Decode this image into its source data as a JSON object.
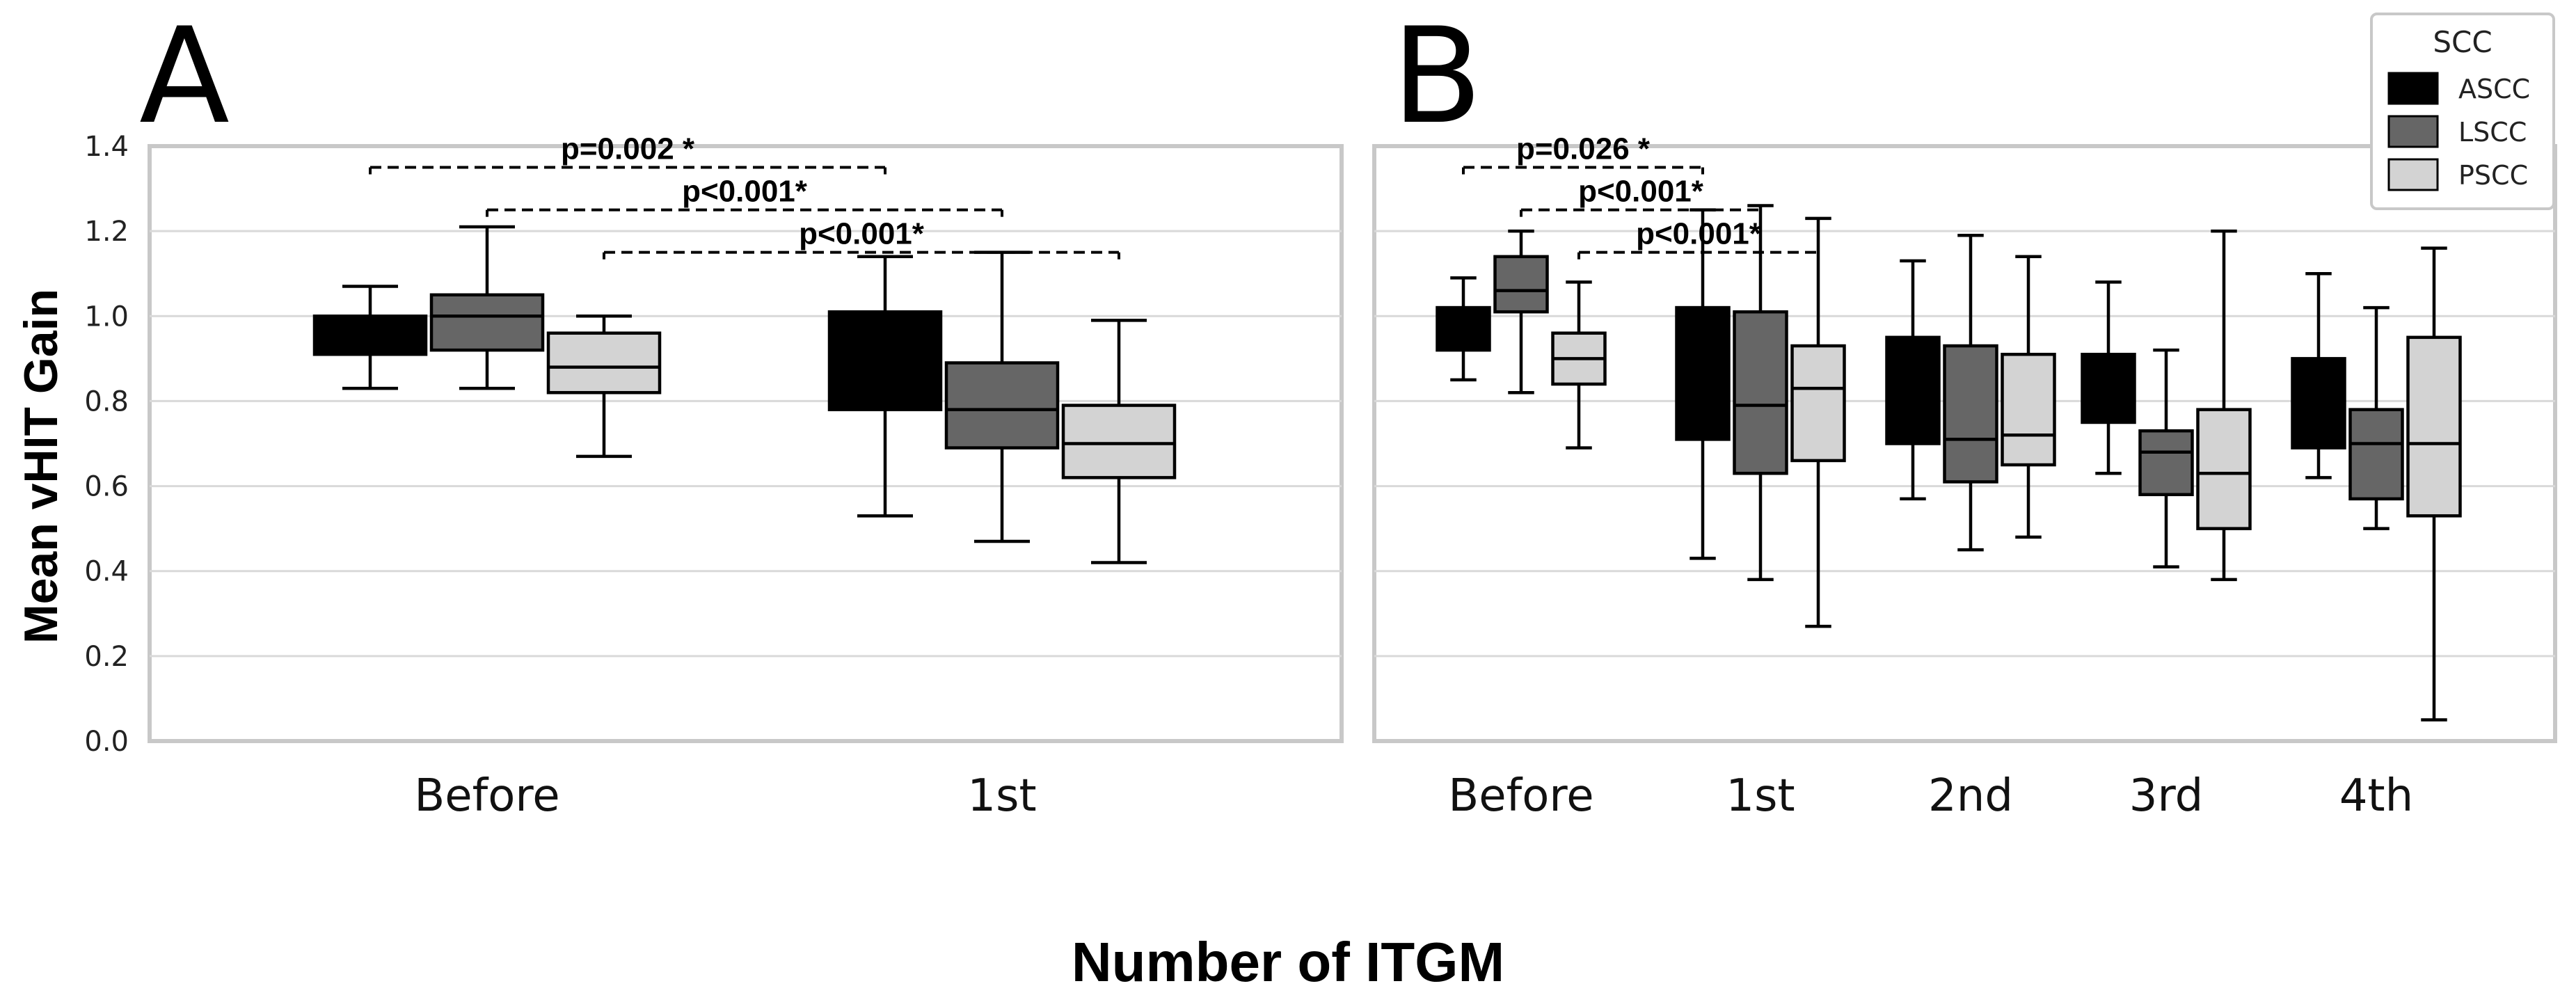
{
  "chart_data": [
    {
      "panel": "A",
      "type": "box",
      "xlabel": "Number of ITGM",
      "ylabel": "Mean vHIT Gain",
      "ylim": [
        0,
        1.4
      ],
      "yticks": [
        "0.0",
        "0.2",
        "0.4",
        "0.6",
        "0.8",
        "1.0",
        "1.2",
        "1.4"
      ],
      "grid": true,
      "categories": [
        "Before",
        "1st"
      ],
      "series": [
        {
          "name": "ASCC",
          "color": "#000000",
          "boxes": [
            {
              "whislo": 0.83,
              "q1": 0.91,
              "med": 0.95,
              "q3": 1.0,
              "whishi": 1.07
            },
            {
              "whislo": 0.53,
              "q1": 0.78,
              "med": 0.92,
              "q3": 1.01,
              "whishi": 1.14
            }
          ]
        },
        {
          "name": "LSCC",
          "color": "#666666",
          "boxes": [
            {
              "whislo": 0.83,
              "q1": 0.92,
              "med": 1.0,
              "q3": 1.05,
              "whishi": 1.21
            },
            {
              "whislo": 0.47,
              "q1": 0.69,
              "med": 0.78,
              "q3": 0.89,
              "whishi": 1.15
            }
          ]
        },
        {
          "name": "PSCC",
          "color": "#d3d3d3",
          "boxes": [
            {
              "whislo": 0.67,
              "q1": 0.82,
              "med": 0.88,
              "q3": 0.96,
              "whishi": 1.0
            },
            {
              "whislo": 0.42,
              "q1": 0.62,
              "med": 0.7,
              "q3": 0.79,
              "whishi": 0.99
            }
          ]
        }
      ],
      "annotations": [
        {
          "text": "p=0.002 *",
          "from": 0,
          "to": 3,
          "y": 1.35
        },
        {
          "text": "p<0.001*",
          "from": 1,
          "to": 4,
          "y": 1.25
        },
        {
          "text": "p<0.001*",
          "from": 2,
          "to": 5,
          "y": 1.15
        }
      ]
    },
    {
      "panel": "B",
      "type": "box",
      "ylim": [
        0,
        1.4
      ],
      "grid": true,
      "categories": [
        "Before",
        "1st",
        "2nd",
        "3rd",
        "4th"
      ],
      "series": [
        {
          "name": "ASCC",
          "color": "#000000",
          "boxes": [
            {
              "whislo": 0.85,
              "q1": 0.92,
              "med": 0.97,
              "q3": 1.02,
              "whishi": 1.09
            },
            {
              "whislo": 0.43,
              "q1": 0.71,
              "med": 0.86,
              "q3": 1.02,
              "whishi": 1.25
            },
            {
              "whislo": 0.57,
              "q1": 0.7,
              "med": 0.83,
              "q3": 0.95,
              "whishi": 1.13
            },
            {
              "whislo": 0.63,
              "q1": 0.75,
              "med": 0.85,
              "q3": 0.91,
              "whishi": 1.08
            },
            {
              "whislo": 0.62,
              "q1": 0.69,
              "med": 0.82,
              "q3": 0.9,
              "whishi": 1.1
            }
          ]
        },
        {
          "name": "LSCC",
          "color": "#666666",
          "boxes": [
            {
              "whislo": 0.82,
              "q1": 1.01,
              "med": 1.06,
              "q3": 1.14,
              "whishi": 1.2
            },
            {
              "whislo": 0.38,
              "q1": 0.63,
              "med": 0.79,
              "q3": 1.01,
              "whishi": 1.26
            },
            {
              "whislo": 0.45,
              "q1": 0.61,
              "med": 0.71,
              "q3": 0.93,
              "whishi": 1.19
            },
            {
              "whislo": 0.41,
              "q1": 0.58,
              "med": 0.68,
              "q3": 0.73,
              "whishi": 0.92
            },
            {
              "whislo": 0.5,
              "q1": 0.57,
              "med": 0.7,
              "q3": 0.78,
              "whishi": 1.02
            }
          ]
        },
        {
          "name": "PSCC",
          "color": "#d3d3d3",
          "boxes": [
            {
              "whislo": 0.69,
              "q1": 0.84,
              "med": 0.9,
              "q3": 0.96,
              "whishi": 1.08
            },
            {
              "whislo": 0.27,
              "q1": 0.66,
              "med": 0.83,
              "q3": 0.93,
              "whishi": 1.23
            },
            {
              "whislo": 0.48,
              "q1": 0.65,
              "med": 0.72,
              "q3": 0.91,
              "whishi": 1.14
            },
            {
              "whislo": 0.38,
              "q1": 0.5,
              "med": 0.63,
              "q3": 0.78,
              "whishi": 1.2
            },
            {
              "whislo": 0.05,
              "q1": 0.53,
              "med": 0.7,
              "q3": 0.95,
              "whishi": 1.16
            }
          ]
        }
      ],
      "annotations": [
        {
          "text": "p=0.026 *",
          "from": 0,
          "to": 3,
          "y": 1.35
        },
        {
          "text": "p<0.001*",
          "from": 1,
          "to": 4,
          "y": 1.25
        },
        {
          "text": "p<0.001*",
          "from": 2,
          "to": 5,
          "y": 1.15
        }
      ],
      "legend": {
        "title": "SCC",
        "entries": [
          "ASCC",
          "LSCC",
          "PSCC"
        ],
        "placement": "top-right"
      }
    }
  ]
}
